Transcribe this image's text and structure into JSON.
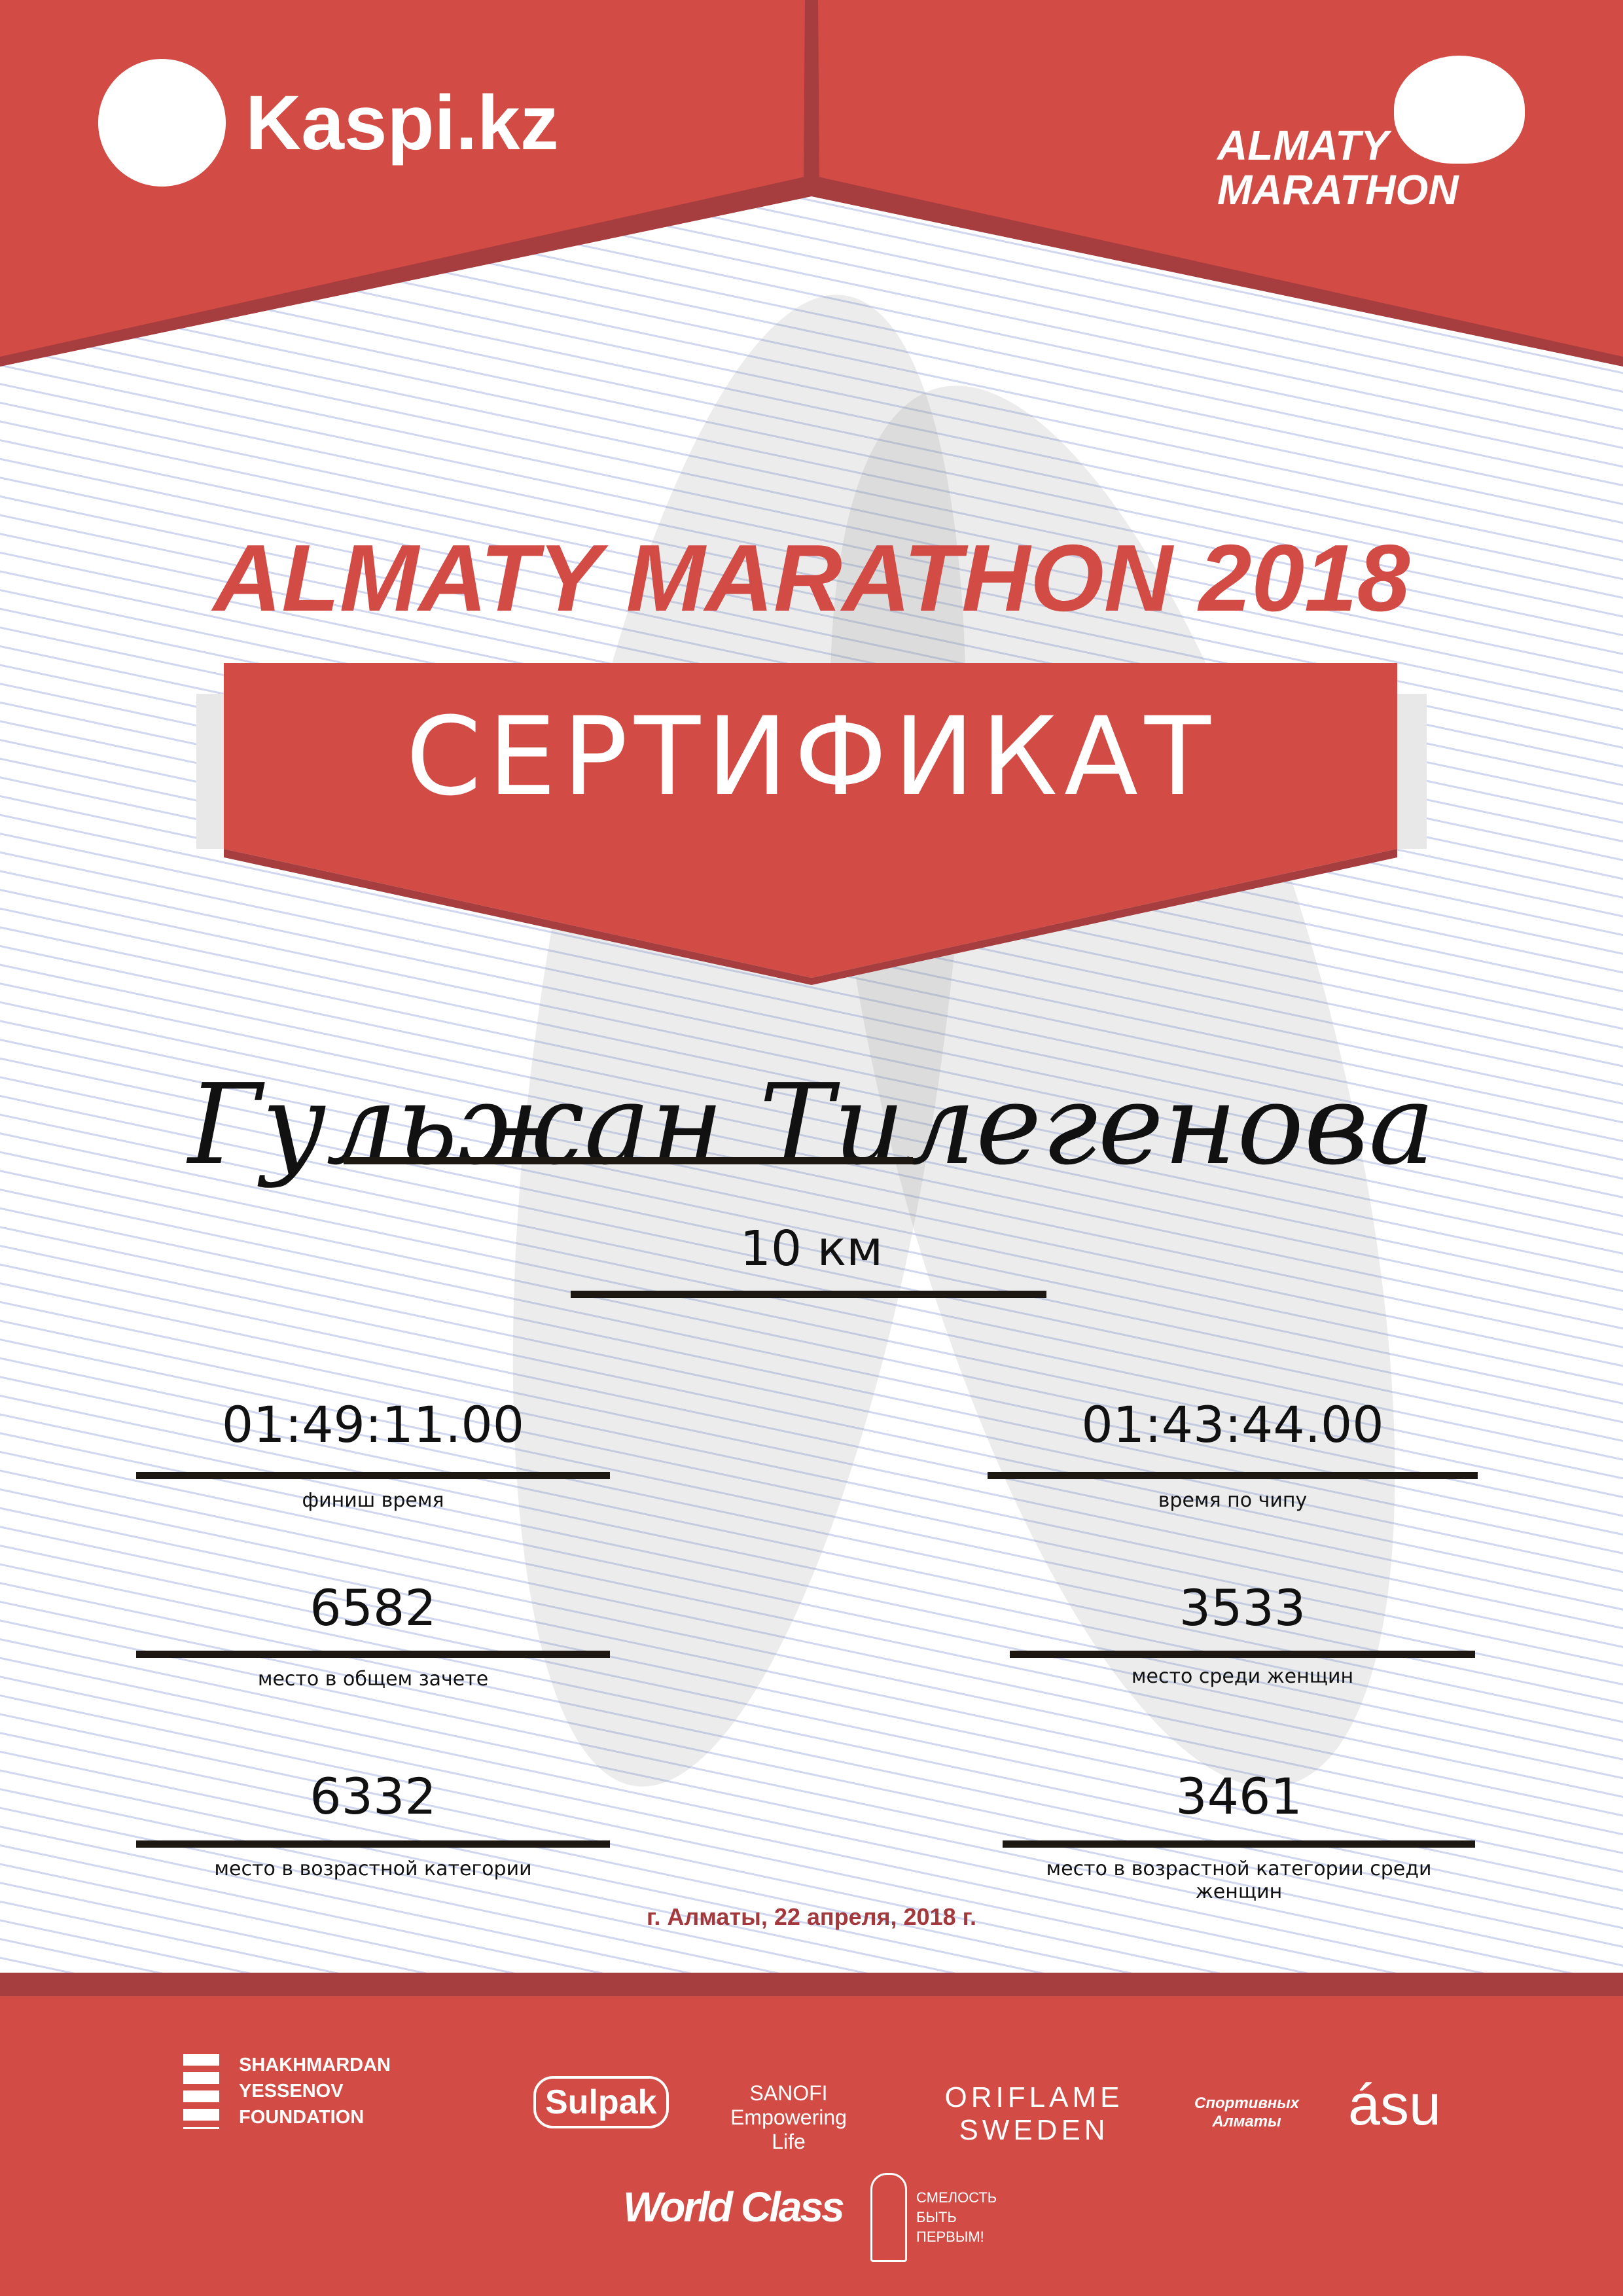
{
  "header": {
    "sponsor_logo": "Kaspi.kz",
    "event_logo_line1": "ALMATY",
    "event_logo_line2": "MARATHON"
  },
  "title": "ALMATY MARATHON 2018",
  "banner": "СЕРТИФИКАТ",
  "participant": {
    "name": "Гульжан Тилегенова",
    "distance": "10 км"
  },
  "results": [
    {
      "value": "01:49:11.00",
      "label": "финиш время"
    },
    {
      "value": "01:43:44.00",
      "label": "время по чипу"
    },
    {
      "value": "6582",
      "label": "место в общем зачете"
    },
    {
      "value": "3533",
      "label": "место среди женщин"
    },
    {
      "value": "6332",
      "label": "место в возрастной категории"
    },
    {
      "value": "3461",
      "label": "место в возрастной категории среди женщин"
    }
  ],
  "date": "г. Алматы, 22 апреля, 2018 г.",
  "footer": {
    "partners": [
      "SHAKHMARDAN YESSENOV FOUNDATION",
      "Sulpak",
      "SANOFI Empowering Life",
      "ORIFLAME SWEDEN",
      "Спортивных Алматы",
      "ásu",
      "World Class",
      "СМЕЛОСТЬ БЫТЬ ПЕРВЫМ!"
    ]
  },
  "colors": {
    "red": "#d24b45",
    "dark_red": "#a63d3f",
    "date_red": "#a3393d"
  }
}
